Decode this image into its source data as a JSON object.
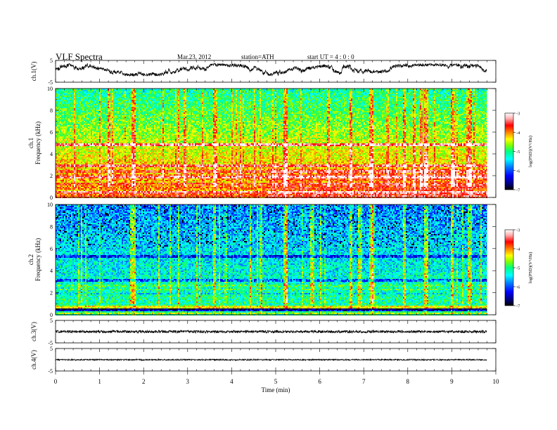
{
  "header": {
    "title": "VLF  Spectra",
    "date": "Mar.23, 2012",
    "station": "station=ATH",
    "start_ut": "start  UT  =   4 : 0 : 0"
  },
  "colors": {
    "background": "#ffffff",
    "axes": "#000000",
    "trace": "#000000",
    "colormap": [
      "#000000",
      "#00007f",
      "#0000ff",
      "#0080ff",
      "#00ffff",
      "#00ff80",
      "#80ff00",
      "#ffff00",
      "#ff8000",
      "#ff0000",
      "#ffb0b0",
      "#ffffff"
    ]
  },
  "chart_data": [
    {
      "type": "line",
      "name": "ch1-waveform",
      "ylabel": "ch.1(V)",
      "ylim": [
        -5,
        5
      ],
      "yticks": [
        "5",
        "-5"
      ],
      "xlim": [
        0,
        10
      ],
      "x_end_min": 9.8,
      "series_level_range": [
        -1.5,
        3.0
      ],
      "note_shape": "noisy, large excursions near 8 min"
    },
    {
      "type": "heatmap",
      "name": "ch1-spectrogram",
      "ylabel": "ch.1\nFrequency (kHz)",
      "ylabel_lines": [
        "ch.1",
        "Frequency  (kHz)"
      ],
      "yticks": [
        "0",
        "2",
        "4",
        "6",
        "8",
        "10"
      ],
      "ylim": [
        0,
        10
      ],
      "xlim": [
        0,
        10
      ],
      "x_end_min": 9.8,
      "colorbar": {
        "label": "log(PSD)(V²/Hz)",
        "ticks": [
          "-3",
          "-4",
          "-5",
          "-6",
          "-7"
        ],
        "range": [
          -7,
          -3
        ]
      },
      "bands_khz": [
        {
          "freq": 4.85,
          "level": -3.4
        },
        {
          "freq": 2.95,
          "level": -3.6
        },
        {
          "freq": 2.45,
          "level": -3.8
        },
        {
          "freq": 1.85,
          "level": -3.5
        },
        {
          "freq": 1.25,
          "level": -3.9
        },
        {
          "freq": 0.5,
          "level": -3.7
        }
      ],
      "base_level_low_freq": -4.0,
      "base_level_high_freq": -5.3,
      "bursts_min": [
        1.75,
        3.6,
        5.2,
        6.7,
        7.15,
        7.9,
        8.4,
        9.0,
        9.4
      ]
    },
    {
      "type": "heatmap",
      "name": "ch2-spectrogram",
      "ylabel": "ch.2\nFrequency (kHz)",
      "ylabel_lines": [
        "ch.2",
        "Frequency  (kHz)"
      ],
      "yticks": [
        "0",
        "2",
        "4",
        "6",
        "8",
        "10"
      ],
      "ylim": [
        0,
        10
      ],
      "xlim": [
        0,
        10
      ],
      "x_end_min": 9.8,
      "colorbar": {
        "label": "log(PSD)(V²/Hz)",
        "ticks": [
          "-3",
          "-4",
          "-5",
          "-6",
          "-7"
        ],
        "range": [
          -7,
          -3
        ]
      },
      "bands_khz": [
        {
          "freq": 0.4,
          "level": -6.8
        },
        {
          "freq": 0.75,
          "level": -4.5
        },
        {
          "freq": 5.3,
          "level": -6.2
        },
        {
          "freq": 3.1,
          "level": -6.0
        }
      ],
      "base_level_low_freq": -5.2,
      "base_level_high_freq": -5.9,
      "bursts_min": [
        1.75,
        3.6,
        5.2,
        6.7,
        7.15,
        7.9,
        8.4,
        9.0,
        9.4
      ]
    },
    {
      "type": "line",
      "name": "ch3-waveform",
      "ylabel": "ch.3(V)",
      "ylim": [
        -5,
        5
      ],
      "yticks": [
        "5",
        "-5"
      ],
      "xlim": [
        0,
        10
      ],
      "x_end_min": 9.8,
      "series_level": 0.0,
      "noise_amplitude": 0.6
    },
    {
      "type": "line",
      "name": "ch4-waveform",
      "ylabel": "ch.4(V)",
      "ylim": [
        -5,
        5
      ],
      "yticks": [
        "5",
        "-5"
      ],
      "xlim": [
        0,
        10
      ],
      "x_end_min": 9.8,
      "series_level": 0.0,
      "noise_amplitude": 0.3,
      "xlabel": "Time  (min)",
      "xticks": [
        "0",
        "1",
        "2",
        "3",
        "4",
        "5",
        "6",
        "7",
        "8",
        "9",
        "10"
      ]
    }
  ]
}
